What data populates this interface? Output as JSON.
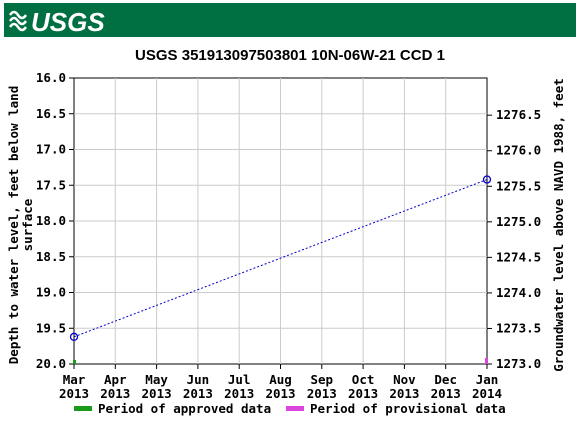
{
  "header": {
    "logo_text": "USGS",
    "bar_color": "#006f41"
  },
  "chart_data": {
    "type": "line",
    "title": "USGS 351913097503801 10N-06W-21 CCD 1",
    "ylabel_left": "Depth to water level, feet below land surface",
    "ylabel_left_lines": [
      "Depth to water level, feet below land",
      "surface"
    ],
    "ylabel_right": "Groundwater level above NAVD 1988, feet",
    "y_left_range": [
      20.0,
      16.0
    ],
    "y_left_inverted": true,
    "y_left_ticks": [
      "16.0",
      "16.5",
      "17.0",
      "17.5",
      "18.0",
      "18.5",
      "19.0",
      "19.5",
      "20.0"
    ],
    "y_right_range": [
      1273.0,
      1276.5
    ],
    "y_right_ticks": [
      "1273.0",
      "1273.5",
      "1274.0",
      "1274.5",
      "1275.0",
      "1275.5",
      "1276.0",
      "1276.5"
    ],
    "x_ticks": [
      {
        "month": "Mar",
        "year": "2013"
      },
      {
        "month": "Apr",
        "year": "2013"
      },
      {
        "month": "May",
        "year": "2013"
      },
      {
        "month": "Jun",
        "year": "2013"
      },
      {
        "month": "Jul",
        "year": "2013"
      },
      {
        "month": "Aug",
        "year": "2013"
      },
      {
        "month": "Sep",
        "year": "2013"
      },
      {
        "month": "Oct",
        "year": "2013"
      },
      {
        "month": "Nov",
        "year": "2013"
      },
      {
        "month": "Dec",
        "year": "2013"
      },
      {
        "month": "Jan",
        "year": "2014"
      }
    ],
    "x_range": [
      "2013-03-01",
      "2014-01-01"
    ],
    "grid": true,
    "series": [
      {
        "points": [
          {
            "x": "2013-03-01",
            "depth": 19.62
          },
          {
            "x": "2014-01-01",
            "depth": 17.42
          }
        ],
        "color": "#0000cc"
      }
    ],
    "legend": [
      {
        "label": "Period of approved data",
        "color": "#1a9a1a"
      },
      {
        "label": "Period of provisional data",
        "color": "#dd44dd"
      }
    ],
    "legend_position": "bottom"
  }
}
